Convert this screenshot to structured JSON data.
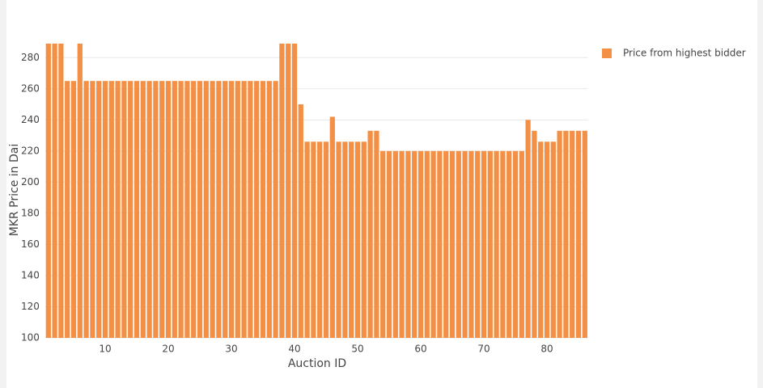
{
  "chart_data": {
    "type": "bar",
    "x_label": "Auction ID",
    "y_label": "MKR Price in Dai",
    "x": [
      1,
      2,
      3,
      4,
      5,
      6,
      7,
      8,
      9,
      10,
      11,
      12,
      13,
      14,
      15,
      16,
      17,
      18,
      19,
      20,
      21,
      22,
      23,
      24,
      25,
      26,
      27,
      28,
      29,
      30,
      31,
      32,
      33,
      34,
      35,
      36,
      37,
      38,
      39,
      40,
      41,
      42,
      43,
      44,
      45,
      46,
      47,
      48,
      49,
      50,
      51,
      52,
      53,
      54,
      55,
      56,
      57,
      58,
      59,
      60,
      61,
      62,
      63,
      64,
      65,
      66,
      67,
      68,
      69,
      70,
      71,
      72,
      73,
      74,
      75,
      76,
      77,
      78,
      79,
      80,
      81,
      82,
      83,
      84,
      85,
      86
    ],
    "series": [
      {
        "name": "Price from highest bidder",
        "color": "#f39046",
        "values": [
          289,
          289,
          289,
          265,
          265,
          289,
          265,
          265,
          265,
          265,
          265,
          265,
          265,
          265,
          265,
          265,
          265,
          265,
          265,
          265,
          265,
          265,
          265,
          265,
          265,
          265,
          265,
          265,
          265,
          265,
          265,
          265,
          265,
          265,
          265,
          265,
          265,
          289,
          289,
          289,
          250,
          226,
          226,
          226,
          226,
          242,
          226,
          226,
          226,
          226,
          226,
          233,
          233,
          220,
          220,
          220,
          220,
          220,
          220,
          220,
          220,
          220,
          220,
          220,
          220,
          220,
          220,
          220,
          220,
          220,
          220,
          220,
          220,
          220,
          220,
          220,
          240,
          233,
          226,
          226,
          226,
          233,
          233,
          233,
          233,
          233
        ]
      }
    ],
    "xlim": [
      0.5,
      86.5
    ],
    "xticks": [
      10,
      20,
      30,
      40,
      50,
      60,
      70,
      80
    ],
    "ylim": [
      100,
      290
    ],
    "yticks": [
      100,
      120,
      140,
      160,
      180,
      200,
      220,
      240,
      260,
      280
    ],
    "grid": true,
    "legend": "top-right"
  }
}
